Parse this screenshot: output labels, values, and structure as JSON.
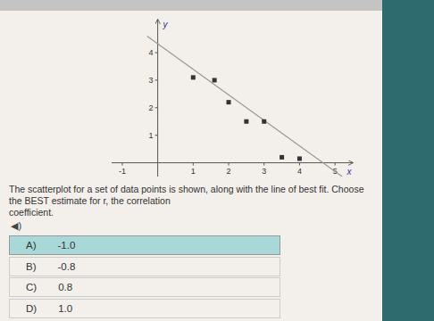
{
  "chart_data": {
    "type": "scatter",
    "x_label": "x",
    "y_label": "y",
    "series": [
      {
        "type": "scatter",
        "marker": "square",
        "color": "#333333",
        "x": [
          1.0,
          1.6,
          2.0,
          2.5,
          3.0,
          3.5,
          4.0
        ],
        "values": [
          3.1,
          3.0,
          2.2,
          1.5,
          1.5,
          0.2,
          0.15
        ]
      },
      {
        "type": "line",
        "color": "#999999",
        "x": [
          -0.3,
          5.2
        ],
        "values": [
          4.6,
          -0.5
        ]
      }
    ],
    "xlim": [
      -1.3,
      5.5
    ],
    "ylim": [
      -0.5,
      5.2
    ],
    "xticks": [
      -1,
      1,
      2,
      3,
      4,
      5
    ],
    "yticks": [
      1,
      2,
      3,
      4
    ]
  },
  "question": "The scatterplot for a set of data points is shown, along with the line of best fit. Choose the BEST estimate for r, the correlation\ncoefficient.",
  "audio_icon": "◀)",
  "options": [
    {
      "label": "A)",
      "value": "-1.0",
      "selected": true
    },
    {
      "label": "B)",
      "value": "-0.8",
      "selected": false
    },
    {
      "label": "C)",
      "value": "0.8",
      "selected": false
    },
    {
      "label": "D)",
      "value": "1.0",
      "selected": false
    }
  ]
}
